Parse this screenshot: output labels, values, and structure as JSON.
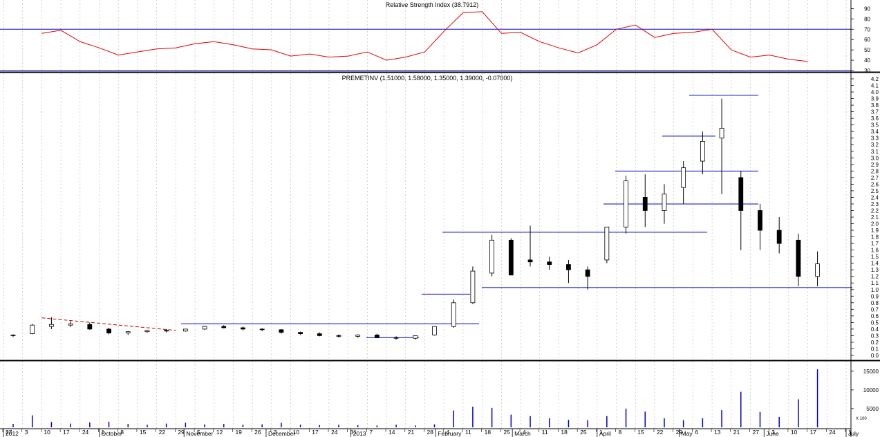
{
  "colors": {
    "grid": "#b4b4b4",
    "axis": "#000000",
    "price_up": "#ffffff",
    "price_down": "#000000",
    "rsi_line": "#e00000",
    "levels": "#0000c8",
    "trend_dashed": "#c00000",
    "volume": "#0000c8"
  },
  "chart_data": [
    {
      "type": "line",
      "panel": "rsi",
      "title": "Relative Strength Index (38.7912)",
      "ylim": [
        30,
        97
      ],
      "yticks": [
        "90",
        "80",
        "70",
        "60",
        "50",
        "40",
        "30"
      ],
      "levels": [
        70,
        30
      ],
      "grid": true,
      "x": [
        "2012-08-27",
        "2012-09-03",
        "2012-09-10",
        "2012-09-17",
        "2012-09-24",
        "2012-10-01",
        "2012-10-08",
        "2012-10-15",
        "2012-10-22",
        "2012-10-29",
        "2012-11-05",
        "2012-11-12",
        "2012-11-19",
        "2012-11-26",
        "2012-12-03",
        "2012-12-10",
        "2012-12-17",
        "2012-12-24",
        "2012-12-31",
        "2013-01-07",
        "2013-01-14",
        "2013-01-21",
        "2013-01-28",
        "2013-02-04",
        "2013-02-11",
        "2013-02-18",
        "2013-02-25",
        "2013-03-04",
        "2013-03-11",
        "2013-03-18",
        "2013-03-25",
        "2013-04-01",
        "2013-04-08",
        "2013-04-15",
        "2013-04-22",
        "2013-04-29",
        "2013-05-06",
        "2013-05-13",
        "2013-05-20",
        "2013-05-27",
        "2013-06-03",
        "2013-06-10",
        "2013-06-17"
      ],
      "values": [
        null,
        null,
        66,
        69,
        58,
        52,
        45,
        48,
        51,
        52,
        56,
        58,
        55,
        51,
        50,
        44,
        46,
        43,
        44,
        48,
        40,
        43,
        48,
        68,
        86,
        87,
        66,
        67,
        58,
        52,
        47,
        55,
        70,
        74,
        62,
        66,
        67,
        70,
        50,
        43,
        45,
        41,
        38.8
      ]
    },
    {
      "type": "candlestick",
      "panel": "price",
      "title": "PREMETINV (1.51000, 1.58000, 1.35000, 1.39000, -0.07000)",
      "ylim": [
        0,
        4.2
      ],
      "yticks": [
        "4.2",
        "4.1",
        "4.0",
        "3.9",
        "3.8",
        "3.7",
        "3.6",
        "3.5",
        "3.4",
        "3.3",
        "3.2",
        "3.1",
        "3.0",
        "2.9",
        "2.8",
        "2.7",
        "2.6",
        "2.5",
        "2.4",
        "2.3",
        "2.2",
        "2.1",
        "2.0",
        "1.9",
        "1.8",
        "1.7",
        "1.6",
        "1.5",
        "1.4",
        "1.3",
        "1.2",
        "1.1",
        "1.0",
        "0.9",
        "0.8",
        "0.7",
        "0.6",
        "0.5",
        "0.4",
        "0.3",
        "0.2",
        "0.1",
        "0.0"
      ],
      "grid": true,
      "x": [
        "2012-08-27",
        "2012-09-03",
        "2012-09-10",
        "2012-09-17",
        "2012-09-24",
        "2012-10-01",
        "2012-10-08",
        "2012-10-15",
        "2012-10-22",
        "2012-10-29",
        "2012-11-05",
        "2012-11-12",
        "2012-11-19",
        "2012-11-26",
        "2012-12-03",
        "2012-12-10",
        "2012-12-17",
        "2012-12-24",
        "2012-12-31",
        "2013-01-07",
        "2013-01-14",
        "2013-01-21",
        "2013-01-28",
        "2013-02-04",
        "2013-02-11",
        "2013-02-18",
        "2013-02-25",
        "2013-03-04",
        "2013-03-11",
        "2013-03-18",
        "2013-03-25",
        "2013-04-01",
        "2013-04-08",
        "2013-04-15",
        "2013-04-22",
        "2013-04-29",
        "2013-05-06",
        "2013-05-13",
        "2013-05-20",
        "2013-05-27",
        "2013-06-03",
        "2013-06-10",
        "2013-06-17"
      ],
      "open": [
        0.3,
        0.33,
        0.44,
        0.46,
        0.47,
        0.4,
        0.34,
        0.36,
        0.38,
        0.37,
        0.4,
        0.44,
        0.42,
        0.4,
        0.39,
        0.35,
        0.33,
        0.3,
        0.29,
        0.31,
        0.27,
        0.26,
        0.31,
        0.44,
        0.8,
        1.25,
        1.75,
        1.45,
        1.42,
        1.38,
        1.3,
        1.45,
        1.95,
        2.4,
        2.2,
        2.55,
        2.95,
        3.3,
        2.7,
        2.2,
        1.9,
        1.75,
        1.2
      ],
      "high": [
        0.32,
        0.48,
        0.58,
        0.52,
        0.5,
        0.42,
        0.37,
        0.39,
        0.4,
        0.4,
        0.45,
        0.46,
        0.44,
        0.41,
        0.4,
        0.36,
        0.35,
        0.32,
        0.32,
        0.33,
        0.29,
        0.28,
        0.42,
        0.85,
        1.35,
        1.83,
        1.78,
        1.97,
        1.5,
        1.45,
        1.35,
        1.95,
        2.73,
        2.75,
        2.6,
        2.95,
        3.4,
        3.9,
        2.8,
        2.3,
        2.1,
        1.85,
        1.58
      ],
      "low": [
        0.28,
        0.32,
        0.4,
        0.43,
        0.39,
        0.32,
        0.31,
        0.34,
        0.35,
        0.36,
        0.39,
        0.41,
        0.38,
        0.37,
        0.33,
        0.31,
        0.29,
        0.27,
        0.27,
        0.26,
        0.24,
        0.24,
        0.3,
        0.42,
        0.78,
        1.2,
        1.25,
        1.35,
        1.3,
        1.1,
        1.0,
        1.4,
        1.85,
        1.95,
        2.0,
        2.3,
        2.75,
        2.45,
        1.6,
        1.6,
        1.55,
        1.05,
        1.05
      ],
      "close": [
        0.31,
        0.46,
        0.47,
        0.48,
        0.4,
        0.34,
        0.36,
        0.38,
        0.37,
        0.4,
        0.44,
        0.42,
        0.4,
        0.39,
        0.35,
        0.33,
        0.3,
        0.29,
        0.31,
        0.27,
        0.26,
        0.3,
        0.44,
        0.8,
        1.28,
        1.75,
        1.22,
        1.42,
        1.38,
        1.3,
        1.2,
        1.95,
        2.65,
        2.2,
        2.45,
        2.85,
        3.25,
        3.45,
        2.2,
        1.9,
        1.7,
        1.2,
        1.39
      ],
      "support_resistance_lines": [
        0.27,
        0.48,
        0.93,
        1.03,
        1.87,
        2.3,
        2.8,
        3.33,
        3.95
      ],
      "x_axis_labels": [
        "27",
        "3",
        "10",
        "17",
        "24",
        "1",
        "8",
        "15",
        "22",
        "29",
        "5",
        "12",
        "19",
        "26",
        "3",
        "10",
        "17",
        "24",
        "31",
        "7",
        "14",
        "21",
        "28",
        "4",
        "11",
        "18",
        "25",
        "4",
        "11",
        "18",
        "25",
        "1",
        "8",
        "15",
        "22",
        "29",
        "6",
        "13",
        "21",
        "27",
        "3",
        "10",
        "17",
        "24",
        "1"
      ],
      "month_labels": [
        "2012",
        "October",
        "November",
        "December",
        "2013",
        "February",
        "March",
        "April",
        "May",
        "June",
        "July"
      ]
    },
    {
      "type": "bar",
      "panel": "volume",
      "ylim": [
        0,
        17000
      ],
      "yticks": [
        "15000",
        "10000",
        "5000"
      ],
      "unit_label": "X 100",
      "x": [
        "2012-08-27",
        "2012-09-03",
        "2012-09-10",
        "2012-09-17",
        "2012-09-24",
        "2012-10-01",
        "2012-10-08",
        "2012-10-15",
        "2012-10-22",
        "2012-10-29",
        "2012-11-05",
        "2012-11-12",
        "2012-11-19",
        "2012-11-26",
        "2012-12-03",
        "2012-12-10",
        "2012-12-17",
        "2012-12-24",
        "2012-12-31",
        "2013-01-07",
        "2013-01-14",
        "2013-01-21",
        "2013-01-28",
        "2013-02-04",
        "2013-02-11",
        "2013-02-18",
        "2013-02-25",
        "2013-03-04",
        "2013-03-11",
        "2013-03-18",
        "2013-03-25",
        "2013-04-01",
        "2013-04-08",
        "2013-04-15",
        "2013-04-22",
        "2013-04-29",
        "2013-05-06",
        "2013-05-13",
        "2013-05-20",
        "2013-05-27",
        "2013-06-03",
        "2013-06-10",
        "2013-06-17"
      ],
      "values": [
        900,
        3200,
        1400,
        1000,
        1300,
        1500,
        900,
        700,
        1000,
        1200,
        800,
        900,
        700,
        800,
        1200,
        700,
        600,
        700,
        600,
        500,
        700,
        500,
        800,
        4500,
        5500,
        5200,
        3400,
        3000,
        2400,
        2000,
        1900,
        3000,
        5000,
        4200,
        2400,
        1900,
        2400,
        4600,
        9500,
        4100,
        2800,
        7500,
        15500
      ]
    }
  ]
}
